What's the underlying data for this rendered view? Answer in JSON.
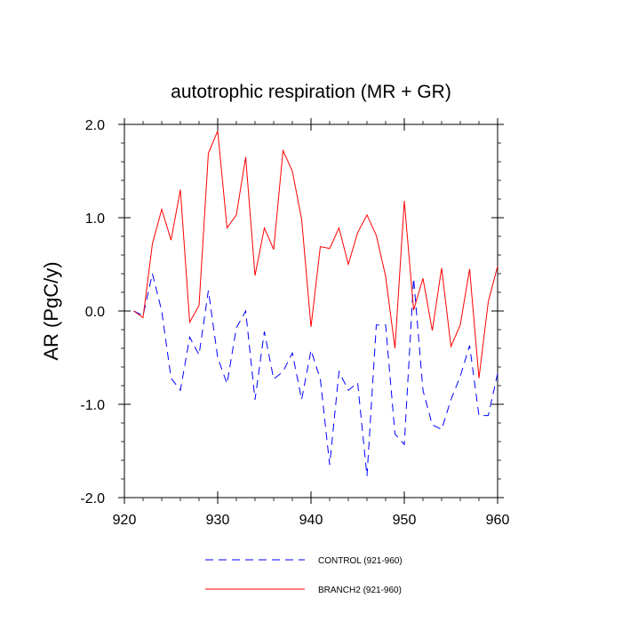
{
  "chart_data": {
    "type": "line",
    "title": "autotrophic respiration (MR + GR)",
    "xlabel": "",
    "ylabel": "AR  (PgC/y)",
    "xlim": [
      920,
      960
    ],
    "ylim": [
      -2.0,
      2.0
    ],
    "x_ticks": [
      920,
      930,
      940,
      950,
      960
    ],
    "y_ticks": [
      -2.0,
      -1.0,
      0.0,
      1.0,
      2.0
    ],
    "x_tick_labels": [
      "920",
      "930",
      "940",
      "950",
      "960"
    ],
    "y_tick_labels": [
      "-2.0",
      "-1.0",
      "0.0",
      "1.0",
      "2.0"
    ],
    "x": [
      921,
      922,
      923,
      924,
      925,
      926,
      927,
      928,
      929,
      930,
      931,
      932,
      933,
      934,
      935,
      936,
      937,
      938,
      939,
      940,
      941,
      942,
      943,
      944,
      945,
      946,
      947,
      948,
      949,
      950,
      951,
      952,
      953,
      954,
      955,
      956,
      957,
      958,
      959,
      960
    ],
    "series": [
      {
        "name": "CONTROL (921-960)",
        "color": "#0000ff",
        "style": "dashed",
        "values": [
          0.0,
          -0.05,
          0.4,
          0.0,
          -0.72,
          -0.85,
          -0.28,
          -0.47,
          0.22,
          -0.5,
          -0.78,
          -0.18,
          0.0,
          -0.95,
          -0.22,
          -0.73,
          -0.65,
          -0.45,
          -0.95,
          -0.42,
          -0.73,
          -1.65,
          -0.65,
          -0.85,
          -0.77,
          -1.77,
          -0.15,
          -0.15,
          -1.32,
          -1.43,
          0.35,
          -0.85,
          -1.22,
          -1.27,
          -0.95,
          -0.7,
          -0.37,
          -1.12,
          -1.12,
          -0.67
        ]
      },
      {
        "name": "BRANCH2 (921-960)",
        "color": "#ff0000",
        "style": "solid",
        "values": [
          0.0,
          -0.07,
          0.72,
          1.09,
          0.76,
          1.3,
          -0.12,
          0.06,
          1.69,
          1.93,
          0.89,
          1.03,
          1.65,
          0.38,
          0.89,
          0.66,
          1.72,
          1.5,
          0.98,
          -0.17,
          0.69,
          0.67,
          0.89,
          0.5,
          0.84,
          1.03,
          0.81,
          0.37,
          -0.4,
          1.18,
          0.01,
          0.35,
          -0.21,
          0.46,
          -0.38,
          -0.15,
          0.45,
          -0.72,
          0.1,
          0.48
        ]
      }
    ],
    "legend": "bottom-center",
    "grid": false
  }
}
